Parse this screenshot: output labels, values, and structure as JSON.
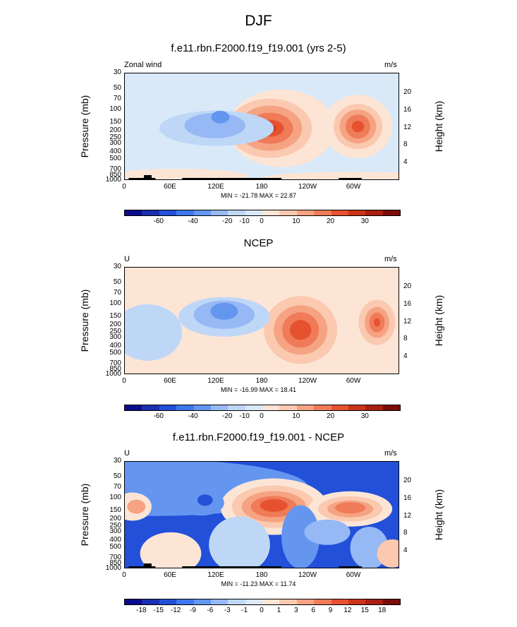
{
  "suptitle": "DJF",
  "colorbar_colors": [
    "#0a0c8c",
    "#1a2fb0",
    "#2250d8",
    "#3c78ec",
    "#6496f0",
    "#96b9f5",
    "#bfd7f7",
    "#d9e9f8",
    "#fde5d6",
    "#fac9b0",
    "#f5a382",
    "#ef7b58",
    "#e6512f",
    "#cc3418",
    "#a82012",
    "#7a0c0a"
  ],
  "panels": [
    {
      "title": "f.e11.rbn.F2000.f19_f19.001 (yrs 2-5)",
      "left_label": "Zonal wind",
      "right_label": "m/s",
      "ylabel": "Pressure (mb)",
      "y2label": "Height (km)",
      "yticks": [
        "30",
        "50",
        "70",
        "100",
        "150",
        "200",
        "250",
        "300",
        "400",
        "500",
        "700",
        "850",
        "1000"
      ],
      "y2ticks": [
        "20",
        "16",
        "12",
        "8",
        "4"
      ],
      "xticks": [
        "0",
        "60E",
        "120E",
        "180",
        "120W",
        "60W"
      ],
      "minmax": "MIN = -21.78  MAX = 22.87",
      "cbar_labels": [
        "-60",
        "-40",
        "-20",
        "-10",
        "0",
        "10",
        "20",
        "30"
      ]
    },
    {
      "title": "NCEP",
      "left_label": "U",
      "right_label": "m/s",
      "ylabel": "Pressure (mb)",
      "y2label": "Height (km)",
      "yticks": [
        "30",
        "50",
        "70",
        "100",
        "150",
        "200",
        "250",
        "300",
        "400",
        "500",
        "700",
        "850",
        "1000"
      ],
      "y2ticks": [
        "20",
        "16",
        "12",
        "8",
        "4"
      ],
      "xticks": [
        "0",
        "60E",
        "120E",
        "180",
        "120W",
        "60W"
      ],
      "minmax": "MIN = -16.99  MAX = 18.41",
      "cbar_labels": [
        "-60",
        "-40",
        "-20",
        "-10",
        "0",
        "10",
        "20",
        "30"
      ]
    },
    {
      "title": "f.e11.rbn.F2000.f19_f19.001 - NCEP",
      "left_label": "U",
      "right_label": "m/s",
      "ylabel": "Pressure (mb)",
      "y2label": "Height (km)",
      "yticks": [
        "30",
        "50",
        "70",
        "100",
        "150",
        "200",
        "250",
        "300",
        "400",
        "500",
        "700",
        "850",
        "1000"
      ],
      "y2ticks": [
        "20",
        "16",
        "12",
        "8",
        "4"
      ],
      "xticks": [
        "0",
        "60E",
        "120E",
        "180",
        "120W",
        "60W"
      ],
      "minmax": "MIN = -11.23  MAX = 11.74",
      "cbar_labels": [
        "-18",
        "-15",
        "-12",
        "-9",
        "-6",
        "-3",
        "-1",
        "0",
        "1",
        "3",
        "6",
        "9",
        "12",
        "15",
        "18"
      ]
    }
  ],
  "chart_data": [
    {
      "type": "heatmap",
      "title": "f.e11.rbn.F2000.f19_f19.001 (yrs 2-5)",
      "xlabel": "",
      "ylabel": "Pressure (mb)",
      "y2label": "Height (km)",
      "units": "m/s",
      "x_ticks": [
        "0",
        "60E",
        "120E",
        "180",
        "120W",
        "60W"
      ],
      "y_ticks": [
        30,
        50,
        70,
        100,
        150,
        200,
        250,
        300,
        400,
        500,
        700,
        850,
        1000
      ],
      "y_scale": "log",
      "y_inverted": true,
      "min": -21.78,
      "max": 22.87,
      "features": [
        {
          "kind": "jet_max",
          "lon": 190,
          "pressure": 200,
          "value": 22
        },
        {
          "kind": "jet_max",
          "lon": 305,
          "pressure": 200,
          "value": 20
        },
        {
          "kind": "easterly_min",
          "lon": 125,
          "pressure": 120,
          "value": -21
        }
      ]
    },
    {
      "type": "heatmap",
      "title": "NCEP",
      "xlabel": "",
      "ylabel": "Pressure (mb)",
      "y2label": "Height (km)",
      "units": "m/s",
      "x_ticks": [
        "0",
        "60E",
        "120E",
        "180",
        "120W",
        "60W"
      ],
      "y_ticks": [
        30,
        50,
        70,
        100,
        150,
        200,
        250,
        300,
        400,
        500,
        700,
        850,
        1000
      ],
      "y_scale": "log",
      "y_inverted": true,
      "min": -16.99,
      "max": 18.41,
      "features": [
        {
          "kind": "jet_max",
          "lon": 235,
          "pressure": 200,
          "value": 18
        },
        {
          "kind": "jet_max",
          "lon": 330,
          "pressure": 200,
          "value": 17
        },
        {
          "kind": "easterly_min",
          "lon": 135,
          "pressure": 120,
          "value": -17
        }
      ]
    },
    {
      "type": "heatmap",
      "title": "f.e11.rbn.F2000.f19_f19.001 - NCEP",
      "xlabel": "",
      "ylabel": "Pressure (mb)",
      "y2label": "Height (km)",
      "units": "m/s",
      "x_ticks": [
        "0",
        "60E",
        "120E",
        "180",
        "120W",
        "60W"
      ],
      "y_ticks": [
        30,
        50,
        70,
        100,
        150,
        200,
        250,
        300,
        400,
        500,
        700,
        850,
        1000
      ],
      "y_scale": "log",
      "y_inverted": true,
      "min": -11.23,
      "max": 11.74,
      "features": [
        {
          "kind": "positive_max",
          "lon": 195,
          "pressure": 130,
          "value": 11
        },
        {
          "kind": "positive_max",
          "lon": 300,
          "pressure": 140,
          "value": 9
        },
        {
          "kind": "negative_min",
          "lon": 105,
          "pressure": 110,
          "value": -11
        }
      ]
    }
  ]
}
